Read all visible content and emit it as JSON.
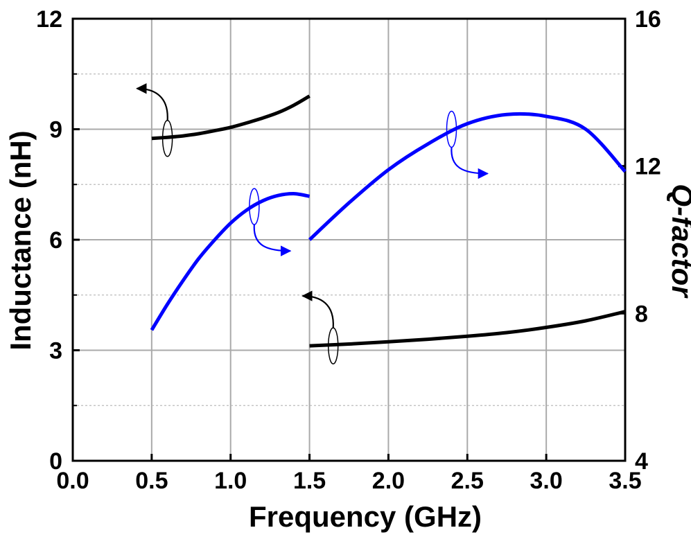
{
  "chart_data": {
    "type": "line",
    "xlabel": "Frequency (GHz)",
    "ylabel": "Inductance (nH)",
    "y2label": "Q-factor",
    "xlim": [
      0.0,
      3.5
    ],
    "ylim": [
      0,
      12
    ],
    "y2lim": [
      4,
      16
    ],
    "xticks": [
      "0.0",
      "0.5",
      "1.0",
      "1.5",
      "2.0",
      "2.5",
      "3.0",
      "3.5"
    ],
    "yticks": [
      "0",
      "3",
      "6",
      "9",
      "12"
    ],
    "y2ticks": [
      "4",
      "8",
      "12",
      "16"
    ],
    "grid": true,
    "colors": {
      "inductance": "#000000",
      "q_factor": "#0000ff"
    },
    "series": [
      {
        "axis": "left",
        "color": "#000000",
        "x": [
          0.5,
          0.6,
          0.7,
          0.8,
          0.9,
          1.0,
          1.1,
          1.2,
          1.3,
          1.4,
          1.5
        ],
        "y": [
          8.75,
          8.78,
          8.82,
          8.88,
          8.96,
          9.05,
          9.17,
          9.3,
          9.45,
          9.65,
          9.9
        ]
      },
      {
        "axis": "left",
        "color": "#000000",
        "x": [
          1.5,
          1.75,
          2.0,
          2.25,
          2.5,
          2.75,
          3.0,
          3.25,
          3.5
        ],
        "y": [
          3.12,
          3.17,
          3.23,
          3.3,
          3.38,
          3.48,
          3.62,
          3.8,
          4.05
        ]
      },
      {
        "axis": "right",
        "color": "#0000ff",
        "x": [
          0.5,
          0.6,
          0.7,
          0.8,
          0.9,
          1.0,
          1.1,
          1.2,
          1.3,
          1.4,
          1.5
        ],
        "y": [
          7.55,
          8.25,
          8.9,
          9.5,
          10.0,
          10.45,
          10.8,
          11.05,
          11.2,
          11.25,
          11.18
        ]
      },
      {
        "axis": "right",
        "color": "#0000ff",
        "x": [
          1.5,
          1.75,
          2.0,
          2.25,
          2.5,
          2.75,
          3.0,
          3.25,
          3.5
        ],
        "y": [
          10.0,
          11.0,
          11.9,
          12.6,
          13.15,
          13.4,
          13.35,
          13.0,
          11.85
        ]
      }
    ]
  }
}
